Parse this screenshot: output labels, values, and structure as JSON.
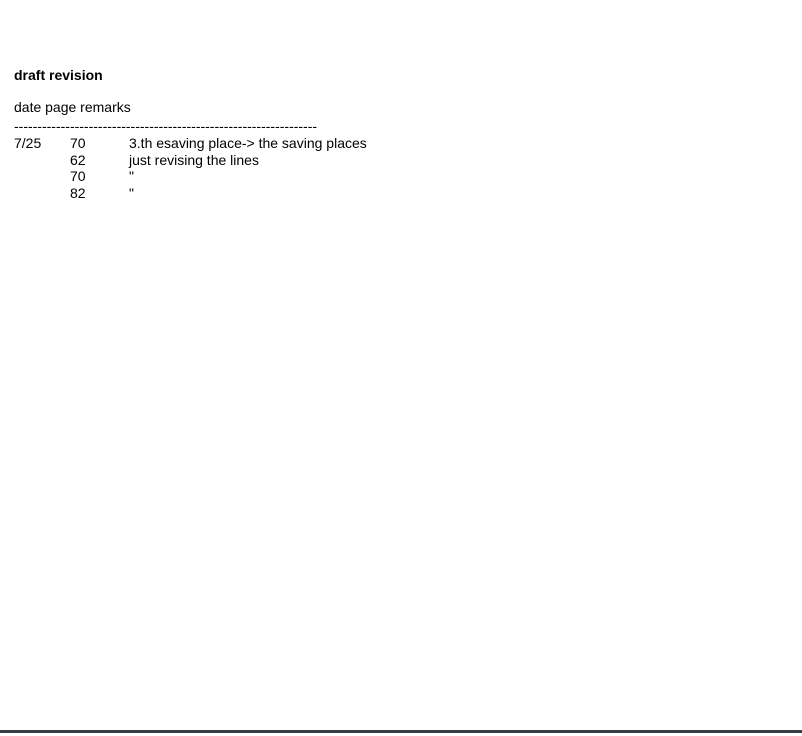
{
  "doc": {
    "title": "draft revision",
    "columns_header": "date page remarks",
    "divider": "-----------------------------------------------------------------",
    "rows": [
      {
        "date": "7/25",
        "page": "70",
        "remark": "3.th esaving place-> the saving places"
      },
      {
        "date": "",
        "page": "62",
        "remark": "just revising the lines"
      },
      {
        "date": "",
        "page": "70",
        "remark": "\""
      },
      {
        "date": "",
        "page": "82",
        "remark": "\""
      }
    ]
  },
  "colors": {
    "text": "#000000",
    "background": "#ffffff",
    "bottom_rule": "#3a3e45"
  }
}
